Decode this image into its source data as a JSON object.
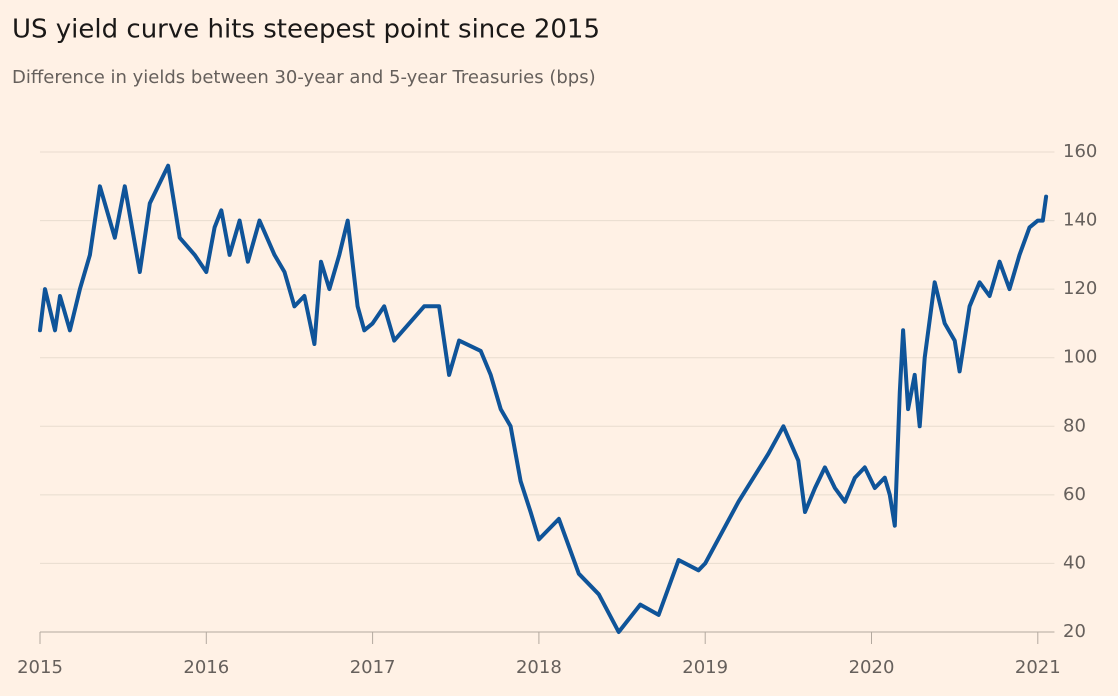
{
  "chart_data": {
    "type": "line",
    "title": "US yield curve hits steepest point since 2015",
    "subtitle": "Difference in yields between 30-year and 5-year Treasuries (bps)",
    "x": [
      2015.0,
      2015.03,
      2015.09,
      2015.12,
      2015.18,
      2015.24,
      2015.3,
      2015.36,
      2015.45,
      2015.51,
      2015.6,
      2015.66,
      2015.77,
      2015.84,
      2015.93,
      2016.0,
      2016.05,
      2016.09,
      2016.14,
      2016.2,
      2016.25,
      2016.32,
      2016.41,
      2016.47,
      2016.53,
      2016.59,
      2016.65,
      2016.69,
      2016.74,
      2016.8,
      2016.85,
      2016.91,
      2016.95,
      2017.0,
      2017.07,
      2017.13,
      2017.22,
      2017.31,
      2017.4,
      2017.46,
      2017.52,
      2017.65,
      2017.71,
      2017.77,
      2017.83,
      2017.89,
      2017.95,
      2018.0,
      2018.12,
      2018.24,
      2018.36,
      2018.48,
      2018.61,
      2018.72,
      2018.84,
      2018.96,
      2019.0,
      2019.2,
      2019.38,
      2019.47,
      2019.56,
      2019.6,
      2019.66,
      2019.72,
      2019.78,
      2019.84,
      2019.9,
      2019.96,
      2020.02,
      2020.08,
      2020.11,
      2020.14,
      2020.17,
      2020.19,
      2020.22,
      2020.26,
      2020.29,
      2020.32,
      2020.38,
      2020.44,
      2020.5,
      2020.53,
      2020.59,
      2020.65,
      2020.71,
      2020.77,
      2020.83,
      2020.89,
      2020.95,
      2021.0,
      2021.03,
      2021.05
    ],
    "series": [
      {
        "name": "Difference in yields",
        "color": "#0f5499",
        "values": [
          108,
          120,
          108,
          118,
          108,
          120,
          130,
          150,
          135,
          150,
          125,
          145,
          156,
          135,
          130,
          125,
          138,
          143,
          130,
          140,
          128,
          140,
          130,
          125,
          115,
          118,
          104,
          128,
          120,
          130,
          140,
          115,
          108,
          110,
          115,
          105,
          110,
          115,
          115,
          95,
          105,
          102,
          95,
          85,
          80,
          64,
          55,
          47,
          53,
          37,
          31,
          20,
          28,
          25,
          41,
          38,
          40,
          58,
          72,
          80,
          70,
          55,
          62,
          68,
          62,
          58,
          65,
          68,
          62,
          65,
          60,
          51,
          90,
          108,
          85,
          95,
          80,
          100,
          122,
          110,
          105,
          96,
          115,
          122,
          118,
          128,
          120,
          130,
          138,
          140,
          140,
          147
        ]
      }
    ],
    "xlim": [
      2015,
      2021.1
    ],
    "xticks": [
      2015,
      2016,
      2017,
      2018,
      2019,
      2020,
      2021
    ],
    "ylim": [
      20,
      160
    ],
    "yticks": [
      20,
      40,
      60,
      80,
      100,
      120,
      140,
      160
    ],
    "grid": true
  }
}
